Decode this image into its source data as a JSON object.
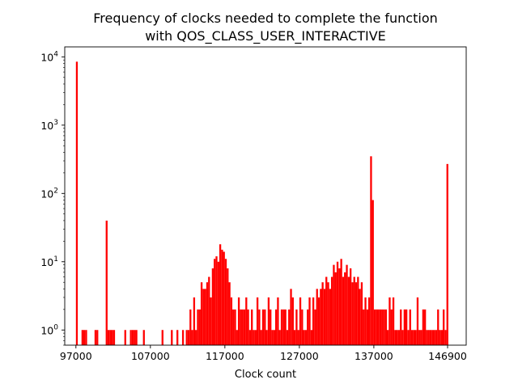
{
  "chart_data": {
    "type": "bar",
    "title_lines": [
      "Frequency of clocks needed to complete the function",
      "with QOS_CLASS_USER_INTERACTIVE"
    ],
    "xlabel": "Clock count",
    "ylabel": "",
    "xlim": [
      95500,
      149400
    ],
    "ylim": [
      0.6,
      14000
    ],
    "yscale": "log",
    "xticks": [
      97000,
      107000,
      117000,
      127000,
      137000,
      146900
    ],
    "xtick_labels": [
      "97000",
      "107000",
      "117000",
      "127000",
      "137000",
      "146900"
    ],
    "yticks": [
      1,
      10,
      100,
      1000,
      10000
    ],
    "ytick_labels": [
      "10^0",
      "10^1",
      "10^2",
      "10^3",
      "10^4"
    ],
    "bar_color": "#ff0000",
    "bin_width": 250,
    "bins": [
      [
        97000,
        8500
      ],
      [
        97750,
        1
      ],
      [
        98000,
        1
      ],
      [
        98250,
        1
      ],
      [
        99500,
        1
      ],
      [
        99750,
        1
      ],
      [
        101000,
        40
      ],
      [
        101250,
        1
      ],
      [
        101500,
        1
      ],
      [
        101750,
        1
      ],
      [
        102000,
        1
      ],
      [
        103500,
        1
      ],
      [
        104250,
        1
      ],
      [
        104500,
        1
      ],
      [
        104750,
        1
      ],
      [
        105000,
        1
      ],
      [
        106000,
        1
      ],
      [
        108500,
        1
      ],
      [
        109750,
        1
      ],
      [
        110500,
        1
      ],
      [
        111250,
        1
      ],
      [
        111750,
        1
      ],
      [
        112000,
        1
      ],
      [
        112250,
        2
      ],
      [
        112500,
        1
      ],
      [
        112750,
        3
      ],
      [
        113000,
        1
      ],
      [
        113250,
        2
      ],
      [
        113500,
        2
      ],
      [
        113750,
        5
      ],
      [
        114000,
        4
      ],
      [
        114250,
        4
      ],
      [
        114500,
        5
      ],
      [
        114750,
        6
      ],
      [
        115000,
        3
      ],
      [
        115250,
        8
      ],
      [
        115500,
        11
      ],
      [
        115750,
        12
      ],
      [
        116000,
        10
      ],
      [
        116250,
        18
      ],
      [
        116500,
        15
      ],
      [
        116750,
        14
      ],
      [
        117000,
        11
      ],
      [
        117250,
        8
      ],
      [
        117500,
        5
      ],
      [
        117750,
        3
      ],
      [
        118000,
        2
      ],
      [
        118250,
        2
      ],
      [
        118500,
        1
      ],
      [
        118750,
        3
      ],
      [
        119000,
        2
      ],
      [
        119250,
        2
      ],
      [
        119500,
        2
      ],
      [
        119750,
        3
      ],
      [
        120000,
        2
      ],
      [
        120250,
        1
      ],
      [
        120500,
        2
      ],
      [
        120750,
        1
      ],
      [
        121000,
        1
      ],
      [
        121250,
        3
      ],
      [
        121500,
        2
      ],
      [
        121750,
        1
      ],
      [
        122000,
        2
      ],
      [
        122250,
        2
      ],
      [
        122500,
        1
      ],
      [
        122750,
        3
      ],
      [
        123000,
        2
      ],
      [
        123250,
        1
      ],
      [
        123500,
        1
      ],
      [
        123750,
        2
      ],
      [
        124000,
        3
      ],
      [
        124250,
        1
      ],
      [
        124500,
        2
      ],
      [
        124750,
        2
      ],
      [
        125000,
        2
      ],
      [
        125250,
        1
      ],
      [
        125500,
        2
      ],
      [
        125750,
        4
      ],
      [
        126000,
        3
      ],
      [
        126250,
        1
      ],
      [
        126500,
        2
      ],
      [
        126750,
        1
      ],
      [
        127000,
        3
      ],
      [
        127250,
        2
      ],
      [
        127500,
        1
      ],
      [
        127750,
        1
      ],
      [
        128000,
        2
      ],
      [
        128250,
        3
      ],
      [
        128500,
        1
      ],
      [
        128750,
        3
      ],
      [
        129000,
        2
      ],
      [
        129250,
        4
      ],
      [
        129500,
        3
      ],
      [
        129750,
        4
      ],
      [
        130000,
        5
      ],
      [
        130250,
        4
      ],
      [
        130500,
        6
      ],
      [
        130750,
        5
      ],
      [
        131000,
        4
      ],
      [
        131250,
        6
      ],
      [
        131500,
        9
      ],
      [
        131750,
        7
      ],
      [
        132000,
        10
      ],
      [
        132250,
        8
      ],
      [
        132500,
        11
      ],
      [
        132750,
        6
      ],
      [
        133000,
        7
      ],
      [
        133250,
        9
      ],
      [
        133500,
        6
      ],
      [
        133750,
        8
      ],
      [
        134000,
        5
      ],
      [
        134250,
        6
      ],
      [
        134500,
        5
      ],
      [
        134750,
        6
      ],
      [
        135000,
        4
      ],
      [
        135250,
        5
      ],
      [
        135500,
        2
      ],
      [
        135750,
        3
      ],
      [
        136000,
        2
      ],
      [
        136250,
        3
      ],
      [
        136500,
        350
      ],
      [
        136750,
        80
      ],
      [
        137000,
        2
      ],
      [
        137250,
        2
      ],
      [
        137500,
        2
      ],
      [
        137750,
        2
      ],
      [
        138000,
        2
      ],
      [
        138250,
        2
      ],
      [
        138500,
        2
      ],
      [
        138750,
        1
      ],
      [
        139000,
        3
      ],
      [
        139250,
        2
      ],
      [
        139500,
        3
      ],
      [
        139750,
        1
      ],
      [
        140000,
        1
      ],
      [
        140250,
        1
      ],
      [
        140500,
        2
      ],
      [
        140750,
        1
      ],
      [
        141000,
        2
      ],
      [
        141250,
        2
      ],
      [
        141500,
        1
      ],
      [
        141750,
        2
      ],
      [
        142000,
        1
      ],
      [
        142250,
        1
      ],
      [
        142500,
        1
      ],
      [
        142750,
        3
      ],
      [
        143000,
        1
      ],
      [
        143250,
        1
      ],
      [
        143500,
        2
      ],
      [
        143750,
        2
      ],
      [
        144000,
        1
      ],
      [
        144250,
        1
      ],
      [
        144500,
        1
      ],
      [
        144750,
        1
      ],
      [
        145000,
        1
      ],
      [
        145250,
        1
      ],
      [
        145500,
        2
      ],
      [
        145750,
        1
      ],
      [
        146000,
        1
      ],
      [
        146250,
        2
      ],
      [
        146500,
        1
      ],
      [
        146750,
        270
      ]
    ]
  }
}
